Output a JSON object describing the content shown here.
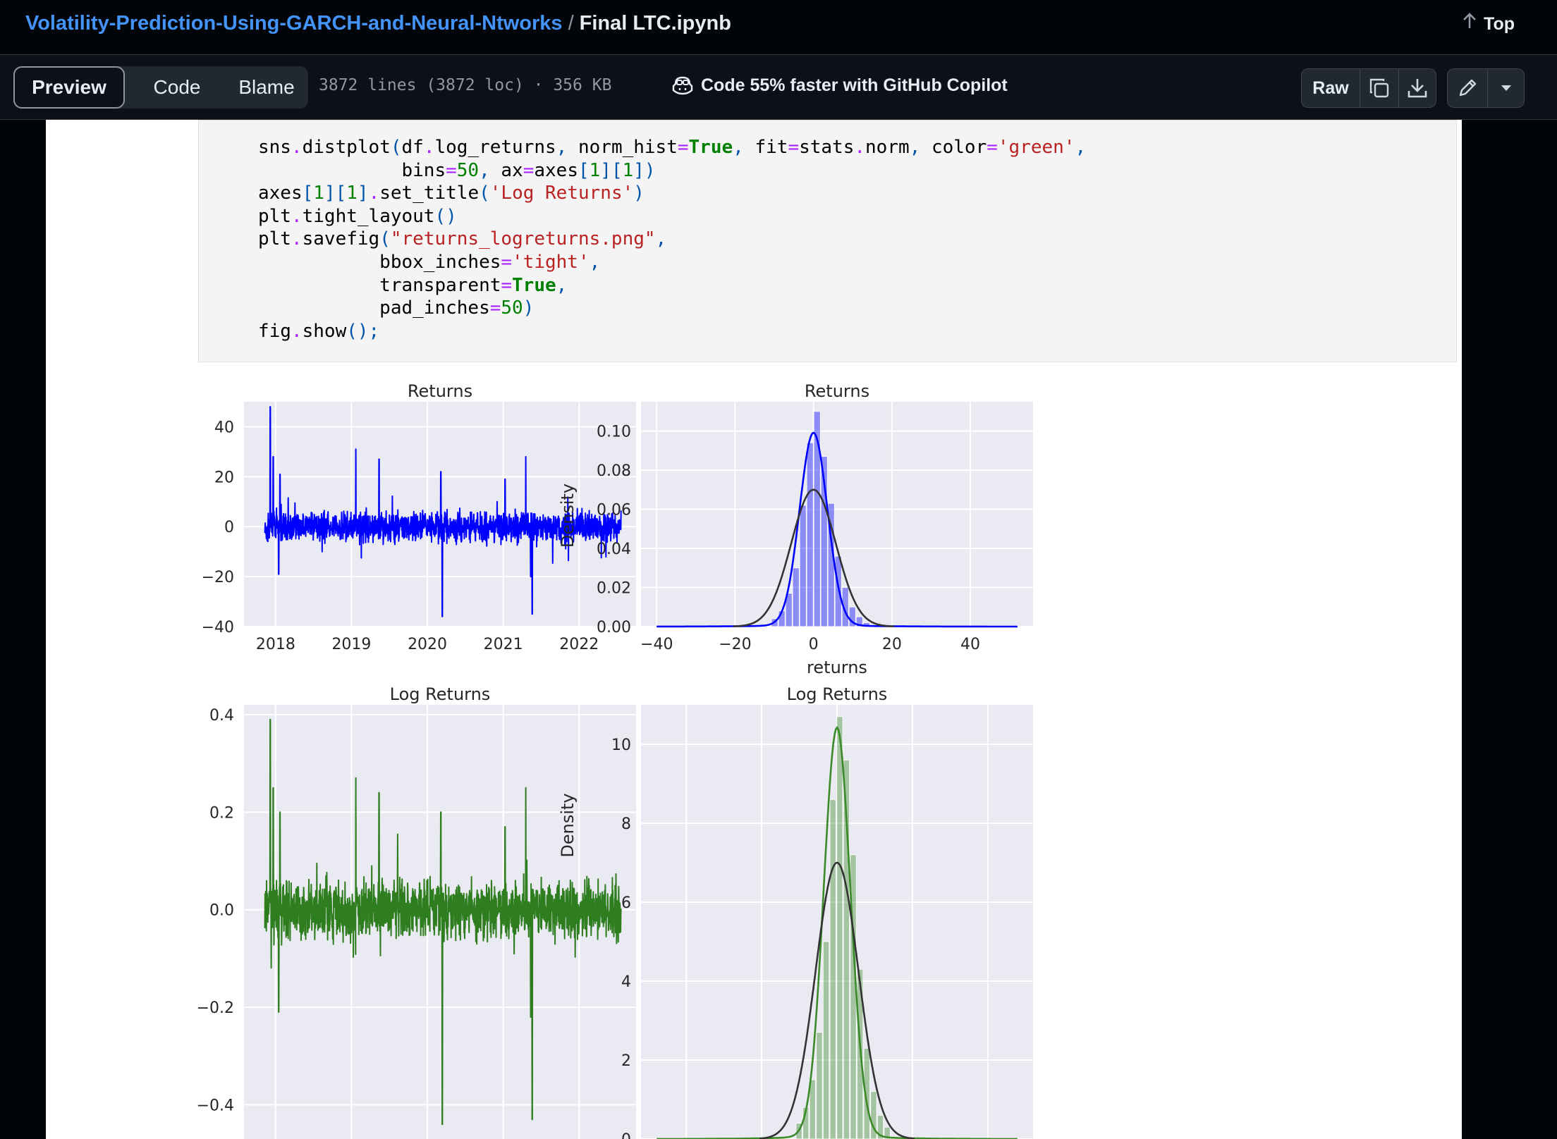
{
  "header": {
    "repo": "Volatility-Prediction-Using-GARCH-and-Neural-Ntworks",
    "separator": "/",
    "file": "Final LTC.ipynb",
    "top_label": "Top"
  },
  "toolbar": {
    "tabs": [
      "Preview",
      "Code",
      "Blame"
    ],
    "active_tab": "Preview",
    "meta": "3872 lines (3872 loc) · 356 KB",
    "copilot": "Code 55% faster with GitHub Copilot",
    "raw_label": "Raw",
    "icons": [
      "copy-icon",
      "download-icon",
      "pencil-icon",
      "triangle-down-icon"
    ]
  },
  "code_lines": [
    "sns.distplot(df.log_returns, norm_hist=True, fit=stats.norm, color='green',",
    "             bins=50, ax=axes[1][1])",
    "axes[1][1].set_title('Log Returns')",
    "plt.tight_layout()",
    "plt.savefig(\"returns_logreturns.png\",",
    "           bbox_inches='tight',",
    "           transparent=True,",
    "           pad_inches=50)",
    "fig.show();"
  ],
  "chart_data": [
    {
      "type": "line",
      "title": "Returns",
      "color": "#0000ff",
      "x_ticks": [
        "2018",
        "2019",
        "2020",
        "2021",
        "2022"
      ],
      "y_ticks": [
        "40",
        "20",
        "0",
        "−20",
        "−40"
      ],
      "xlim": [
        "2017-08",
        "2022-10"
      ],
      "ylim": [
        -40,
        50
      ],
      "x_range": [
        "2017-11-10",
        "2022-07-20"
      ],
      "spikes": [
        {
          "x": "2017-12-06",
          "y": 48
        },
        {
          "x": "2017-12-20",
          "y": 28
        },
        {
          "x": "2018-01-22",
          "y": 21
        },
        {
          "x": "2018-01-16",
          "y": -19
        },
        {
          "x": "2019-01-22",
          "y": 31
        },
        {
          "x": "2019-05-12",
          "y": 27
        },
        {
          "x": "2020-03-12",
          "y": -36
        },
        {
          "x": "2020-03-05",
          "y": 22
        },
        {
          "x": "2021-01-10",
          "y": 19
        },
        {
          "x": "2021-04-18",
          "y": 28
        },
        {
          "x": "2021-05-19",
          "y": -35
        },
        {
          "x": "2021-05-12",
          "y": -20
        }
      ]
    },
    {
      "type": "histogram",
      "title": "Returns",
      "color": "#0000ff",
      "xlabel": "returns",
      "ylabel": "Density",
      "x_ticks": [
        "−40",
        "−20",
        "0",
        "20",
        "40"
      ],
      "y_ticks": [
        "0.00",
        "0.02",
        "0.04",
        "0.06",
        "0.08",
        "0.10"
      ],
      "xlim": [
        -44,
        56
      ],
      "ylim": [
        0,
        0.115
      ],
      "bin_width": 1.82,
      "bins_x": [
        -9.8,
        -8.0,
        -6.2,
        -4.4,
        -2.6,
        -0.8,
        1.0,
        2.8,
        4.6,
        6.4,
        8.2,
        10.0,
        11.8,
        13.6
      ],
      "bins_density": [
        0.004,
        0.008,
        0.017,
        0.03,
        0.062,
        0.094,
        0.11,
        0.087,
        0.063,
        0.036,
        0.02,
        0.01,
        0.005,
        0.002
      ],
      "kde_peak": 0.098,
      "fit_peak": 0.07,
      "fit_mean": 0,
      "fit_std": 5.7
    },
    {
      "type": "line",
      "title": "Log Returns",
      "color": "#2e7d1f",
      "x_ticks": [],
      "y_ticks": [
        "0.4",
        "0.2",
        "0.0",
        "−0.2",
        "−0.4"
      ],
      "xlim": [
        "2017-08",
        "2022-10"
      ],
      "ylim": [
        -0.47,
        0.42
      ],
      "x_range": [
        "2017-11-10",
        "2022-07-20"
      ],
      "spikes": [
        {
          "x": "2017-12-06",
          "y": 0.39
        },
        {
          "x": "2017-12-20",
          "y": 0.25
        },
        {
          "x": "2018-01-22",
          "y": 0.2
        },
        {
          "x": "2018-01-16",
          "y": -0.21
        },
        {
          "x": "2019-01-22",
          "y": 0.27
        },
        {
          "x": "2019-05-12",
          "y": 0.24
        },
        {
          "x": "2020-03-12",
          "y": -0.44
        },
        {
          "x": "2020-03-05",
          "y": 0.2
        },
        {
          "x": "2021-01-10",
          "y": 0.17
        },
        {
          "x": "2021-04-18",
          "y": 0.25
        },
        {
          "x": "2021-05-19",
          "y": -0.43
        },
        {
          "x": "2021-05-12",
          "y": -0.22
        }
      ]
    },
    {
      "type": "histogram",
      "title": "Log Returns",
      "color": "#3a8a28",
      "ylabel": "Density",
      "x_ticks": [],
      "y_ticks": [
        "2",
        "4",
        "6",
        "8",
        "10",
        "0"
      ],
      "xlim": [
        -0.52,
        0.52
      ],
      "ylim": [
        0,
        11
      ],
      "bin_width": 0.0175,
      "bins_x": [
        -0.1,
        -0.082,
        -0.064,
        -0.046,
        -0.028,
        -0.01,
        0.008,
        0.026,
        0.044,
        0.062,
        0.08,
        0.098,
        0.116,
        0.134
      ],
      "bins_density": [
        0.4,
        0.8,
        1.5,
        2.7,
        5.0,
        8.6,
        10.7,
        9.6,
        7.2,
        4.3,
        2.3,
        1.2,
        0.6,
        0.3
      ],
      "kde_peak": 10.3,
      "fit_peak": 7.0,
      "fit_mean": 0,
      "fit_std": 0.057
    }
  ]
}
